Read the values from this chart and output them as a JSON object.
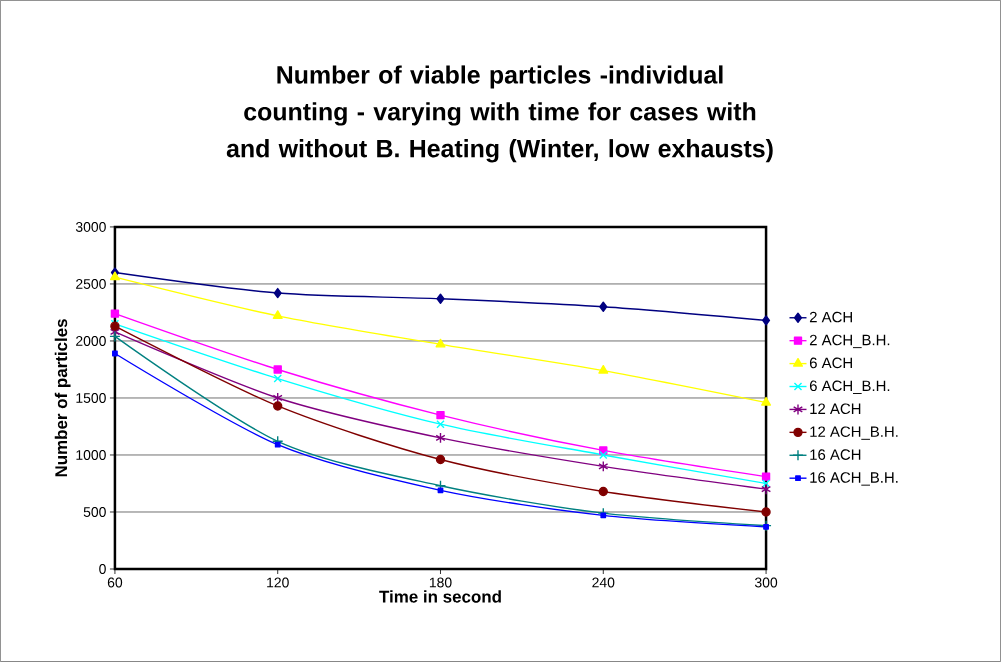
{
  "chart_data": {
    "type": "line",
    "title": "Number of viable particles -individual counting - varying with time for cases with and without B. Heating (Winter,  low exhausts)",
    "xlabel": "Time in second",
    "ylabel": "Number of particles",
    "x": [
      60,
      120,
      180,
      240,
      300
    ],
    "xlim": [
      60,
      300
    ],
    "xticks": [
      60,
      120,
      180,
      240,
      300
    ],
    "ylim": [
      0,
      3000
    ],
    "yticks": [
      0,
      500,
      1000,
      1500,
      2000,
      2500,
      3000
    ],
    "grid": "y",
    "legend": "right",
    "series": [
      {
        "name": "2 ACH",
        "color": "#000080",
        "marker": "diamond",
        "values": [
          2600,
          2420,
          2370,
          2300,
          2180
        ]
      },
      {
        "name": "2 ACH_B.H.",
        "color": "#ff00ff",
        "marker": "square",
        "values": [
          2240,
          1750,
          1350,
          1040,
          810
        ]
      },
      {
        "name": "6 ACH",
        "color": "#ffff00",
        "marker": "triangle",
        "values": [
          2560,
          2220,
          1970,
          1740,
          1460
        ]
      },
      {
        "name": "6 ACH_B.H.",
        "color": "#00ffff",
        "marker": "cross",
        "values": [
          2150,
          1670,
          1270,
          1000,
          750
        ]
      },
      {
        "name": "12 ACH",
        "color": "#800080",
        "marker": "cross",
        "values": [
          2080,
          1500,
          1150,
          900,
          700
        ]
      },
      {
        "name": "12 ACH_B.H.",
        "color": "#800000",
        "marker": "circle",
        "values": [
          2130,
          1430,
          960,
          680,
          500
        ]
      },
      {
        "name": "16 ACH",
        "color": "#008080",
        "marker": "cross",
        "values": [
          2040,
          1120,
          730,
          490,
          380
        ]
      },
      {
        "name": "16 ACH_B.H.",
        "color": "#0000ff",
        "marker": "square",
        "values": [
          1890,
          1090,
          690,
          470,
          370
        ]
      }
    ]
  }
}
